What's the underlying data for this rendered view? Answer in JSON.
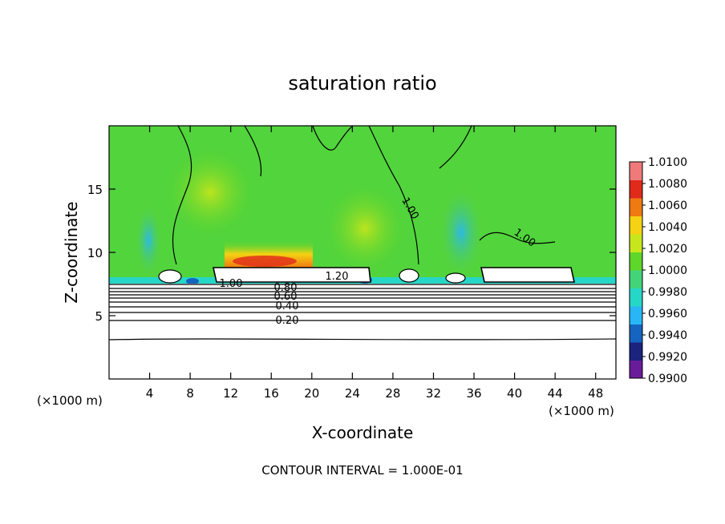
{
  "chart_data": {
    "type": "heatmap",
    "title": "saturation ratio",
    "xlabel": "X-coordinate",
    "ylabel": "Z-coordinate",
    "x_unit_left": "(×1000 m)",
    "x_unit_right": "(×1000 m)",
    "footer": "CONTOUR INTERVAL = 1.000E-01",
    "xlim": [
      0,
      50
    ],
    "ylim": [
      0,
      20
    ],
    "x_ticks": [
      4,
      8,
      12,
      16,
      20,
      24,
      28,
      32,
      36,
      40,
      44,
      48
    ],
    "y_ticks": [
      5,
      10,
      15
    ],
    "colorbar": {
      "min": 0.99,
      "max": 1.01,
      "tick_labels": [
        "1.0100",
        "1.0080",
        "1.0060",
        "1.0040",
        "1.0020",
        "1.0000",
        "0.9980",
        "0.9960",
        "0.9940",
        "0.9920",
        "0.9900"
      ],
      "colors": [
        "#6a1b9a",
        "#1a237e",
        "#1565c0",
        "#29b6f6",
        "#26d7c7",
        "#43d47a",
        "#5fd62a",
        "#c8e61c",
        "#f5d213",
        "#f07a12",
        "#e02a1a",
        "#f07a7a"
      ]
    },
    "contour_labels": [
      "1.00",
      "1.00",
      "1.00",
      "1.20",
      "0.80",
      "0.60",
      "0.40",
      "0.20"
    ],
    "grid": false
  }
}
